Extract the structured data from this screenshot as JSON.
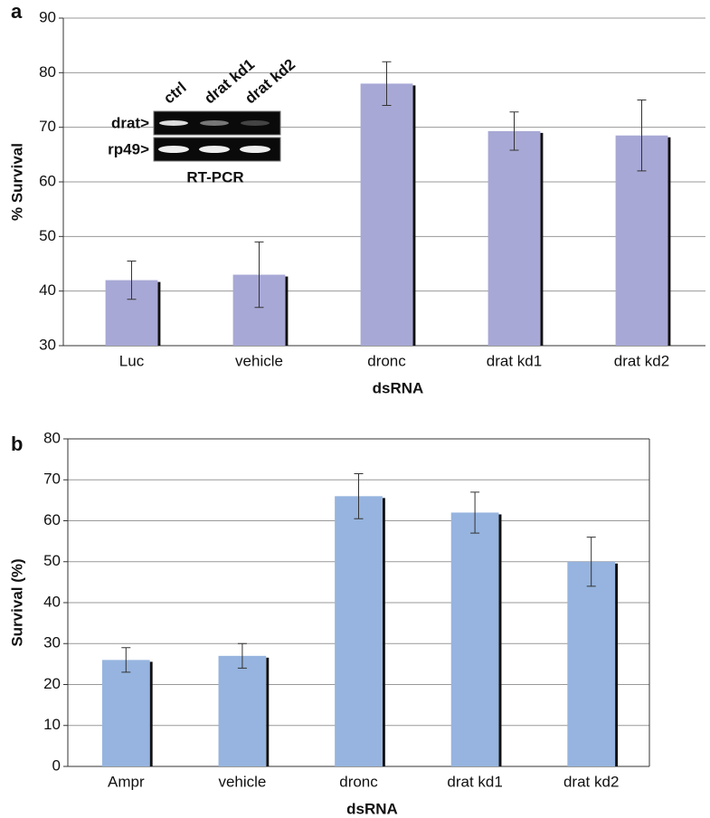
{
  "chart_data": [
    {
      "type": "bar",
      "panel_label": "a",
      "x_label": "dsRNA",
      "y_label": "% Survival",
      "categories": [
        "Luc",
        "vehicle",
        "dronc",
        "drat kd1",
        "drat kd2"
      ],
      "values": [
        42,
        43,
        78,
        69.3,
        68.5
      ],
      "errors": [
        3.5,
        6,
        4,
        3.5,
        6.5
      ],
      "color": "#a8a8d6",
      "ylim": [
        30,
        90
      ],
      "yticks": [
        30,
        40,
        50,
        60,
        70,
        80,
        90
      ],
      "grid": true,
      "inset": {
        "lanes": [
          "ctrl",
          "drat kd1",
          "drat kd2"
        ],
        "rows": [
          "drat>",
          "rp49>"
        ],
        "caption": "RT-PCR"
      }
    },
    {
      "type": "bar",
      "panel_label": "b",
      "x_label": "dsRNA",
      "y_label": "Survival (%)",
      "categories": [
        "Ampr",
        "vehicle",
        "dronc",
        "drat kd1",
        "drat kd2"
      ],
      "values": [
        26,
        27,
        66,
        62,
        50
      ],
      "errors": [
        3,
        3,
        5.5,
        5,
        6
      ],
      "color": "#96b4df",
      "ylim": [
        0,
        80
      ],
      "yticks": [
        0,
        10,
        20,
        30,
        40,
        50,
        60,
        70,
        80
      ],
      "grid": true
    }
  ]
}
